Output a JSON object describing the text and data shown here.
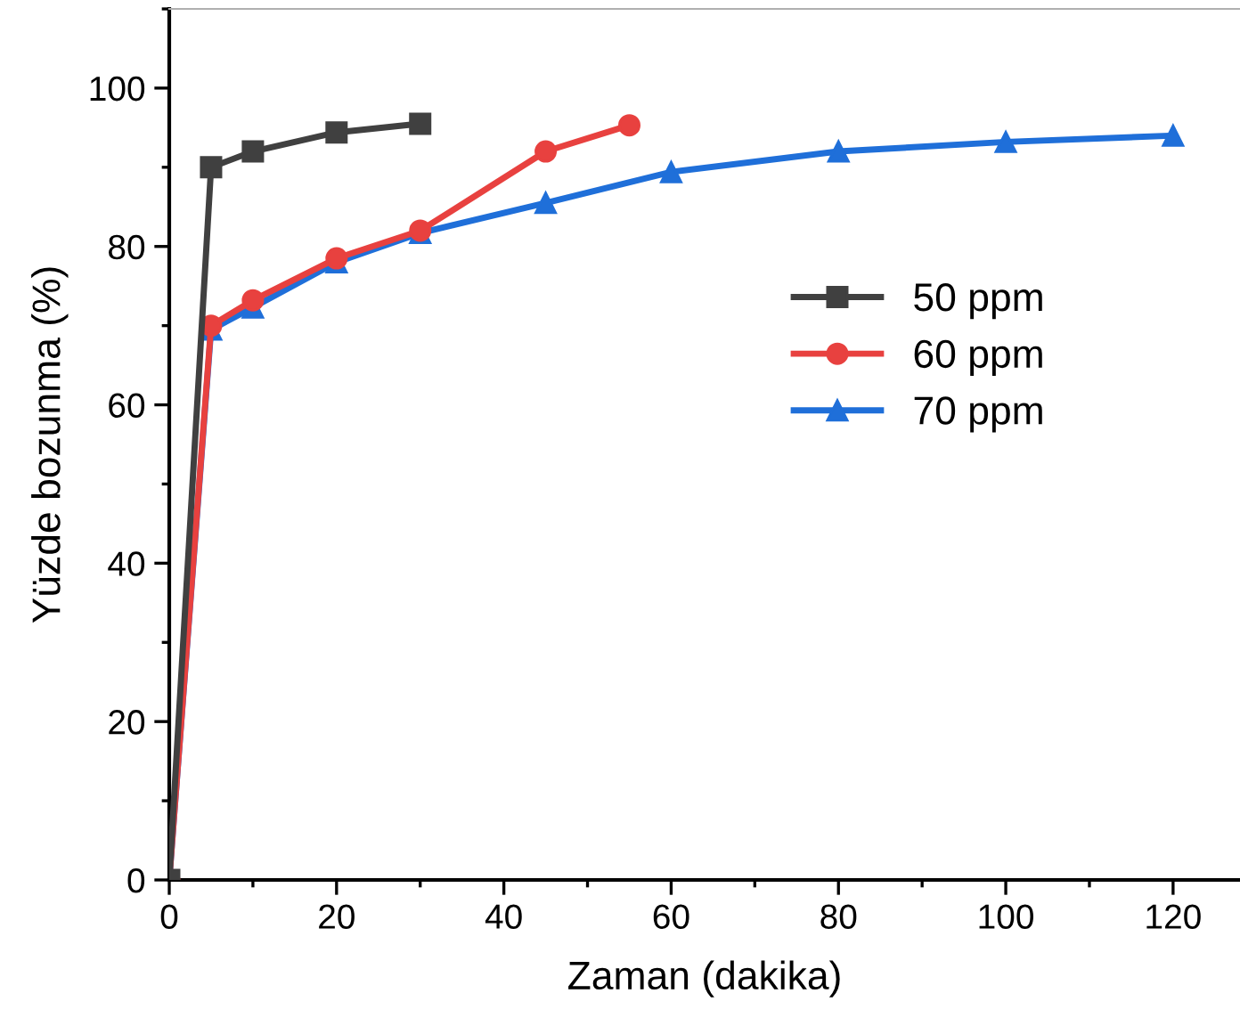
{
  "chart_data": {
    "type": "line",
    "xlabel": "Zaman (dakika)",
    "ylabel": "Yüzde bozunma (%)",
    "xlim": [
      0,
      128
    ],
    "ylim": [
      0,
      110
    ],
    "xticks": [
      0,
      20,
      40,
      60,
      80,
      100,
      120
    ],
    "yticks": [
      0,
      20,
      40,
      60,
      80,
      100
    ],
    "grid": false,
    "legend": "right",
    "line_style": "solid",
    "series": [
      {
        "name": "50 ppm",
        "color": "#404040",
        "marker": "square",
        "x": [
          0,
          5,
          10,
          20,
          30
        ],
        "values": [
          0,
          90,
          92,
          94.4,
          95.5
        ]
      },
      {
        "name": "60 ppm",
        "color": "#e8413f",
        "marker": "circle",
        "x": [
          0,
          5,
          10,
          20,
          30,
          45,
          55
        ],
        "values": [
          0,
          70,
          73.2,
          78.5,
          82,
          92,
          95.3
        ]
      },
      {
        "name": "70 ppm",
        "color": "#1f6fd9",
        "marker": "triangle",
        "x": [
          0,
          5,
          10,
          20,
          30,
          45,
          60,
          80,
          100,
          120
        ],
        "values": [
          0,
          69.5,
          72.3,
          78,
          81.7,
          85.5,
          89.4,
          92,
          93.2,
          94
        ]
      }
    ]
  }
}
